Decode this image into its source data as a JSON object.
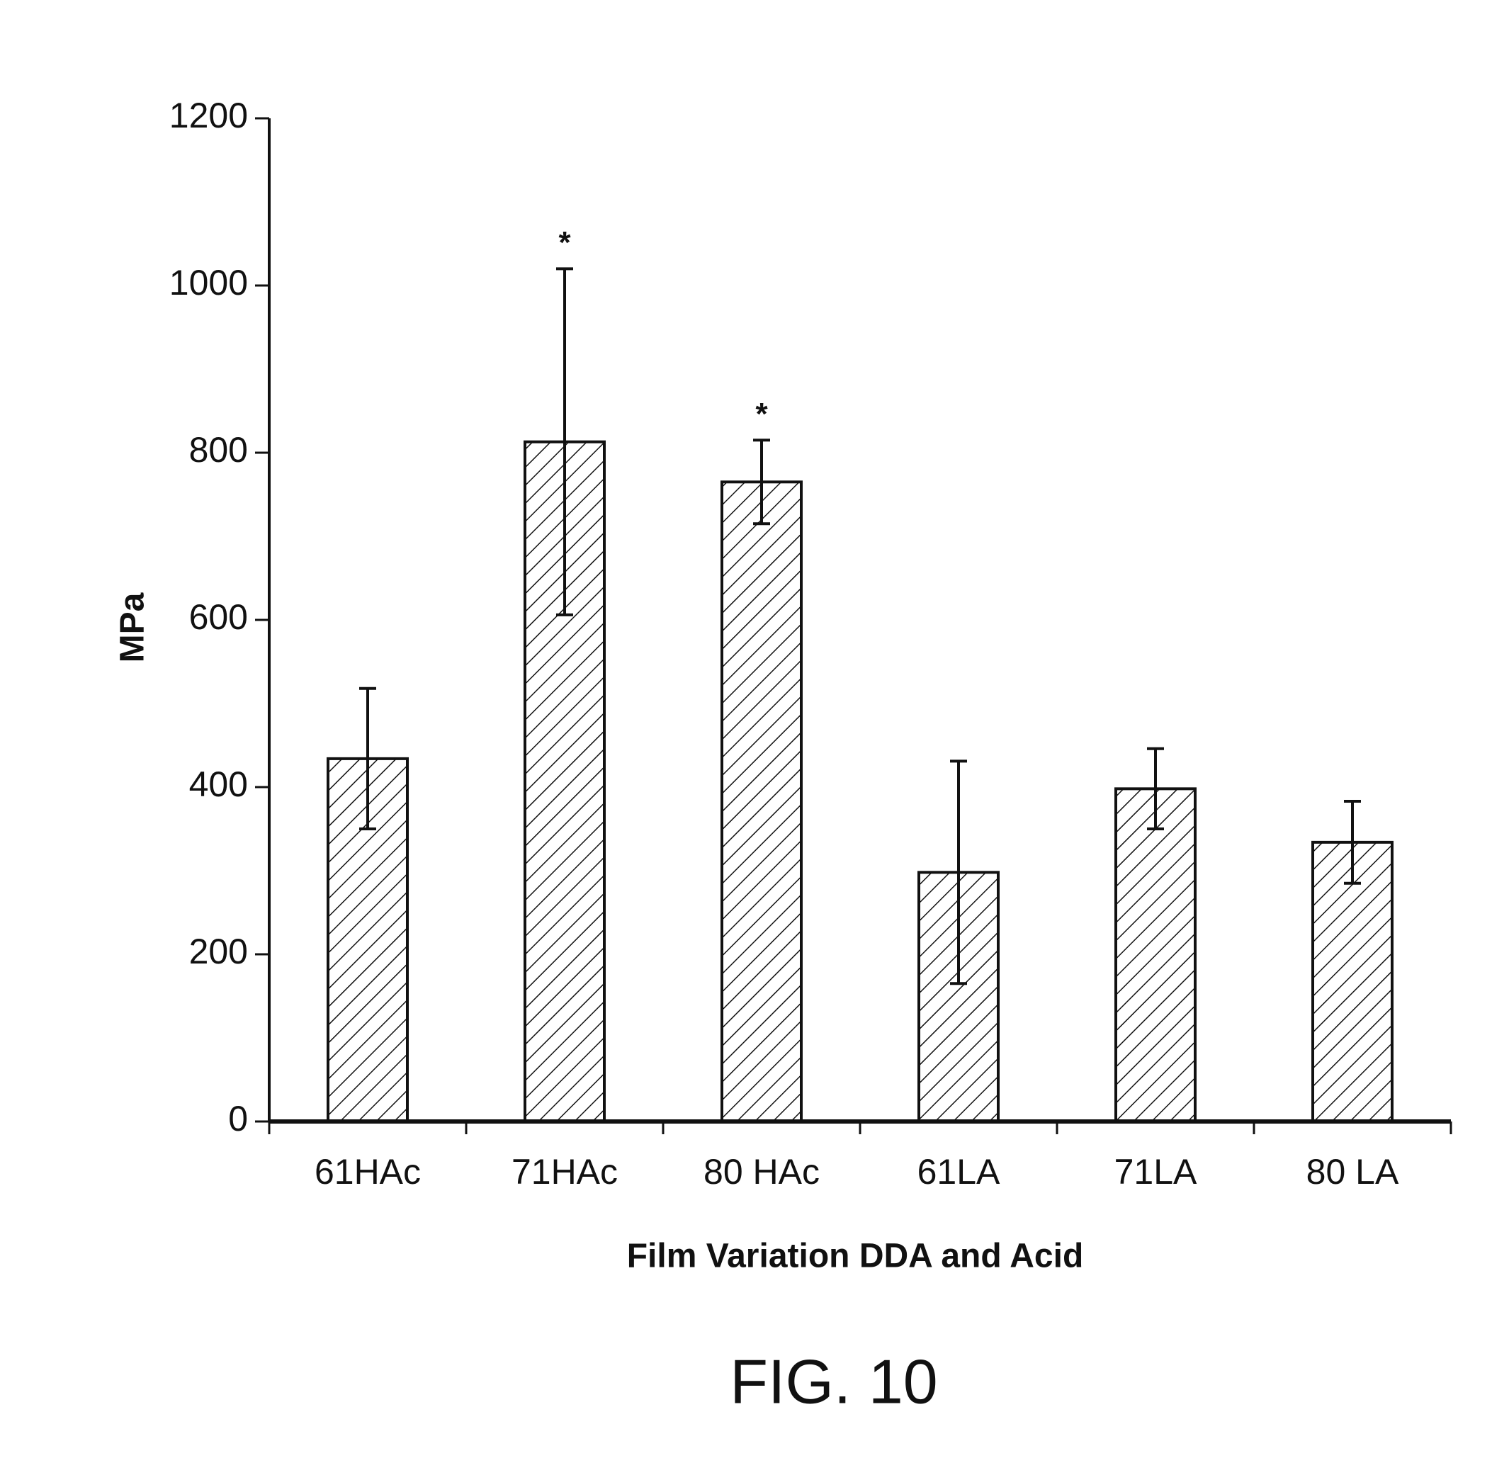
{
  "chart_data": {
    "type": "bar",
    "ylabel": "MPa",
    "xlabel": "Film Variation DDA and Acid",
    "caption": "FIG. 10",
    "categories": [
      "61HAc",
      "71HAc",
      "80 HAc",
      "61LA",
      "71LA",
      "80 LA"
    ],
    "values": [
      434,
      813,
      765,
      298,
      398,
      334
    ],
    "errors": [
      84,
      207,
      50,
      133,
      48,
      49
    ],
    "annotations": [
      null,
      "*",
      "*",
      null,
      null,
      null
    ],
    "color": "#111111",
    "ylim": [
      0,
      1200
    ],
    "yticks": [
      0,
      200,
      400,
      600,
      800,
      1000,
      1200
    ],
    "grid": false
  }
}
